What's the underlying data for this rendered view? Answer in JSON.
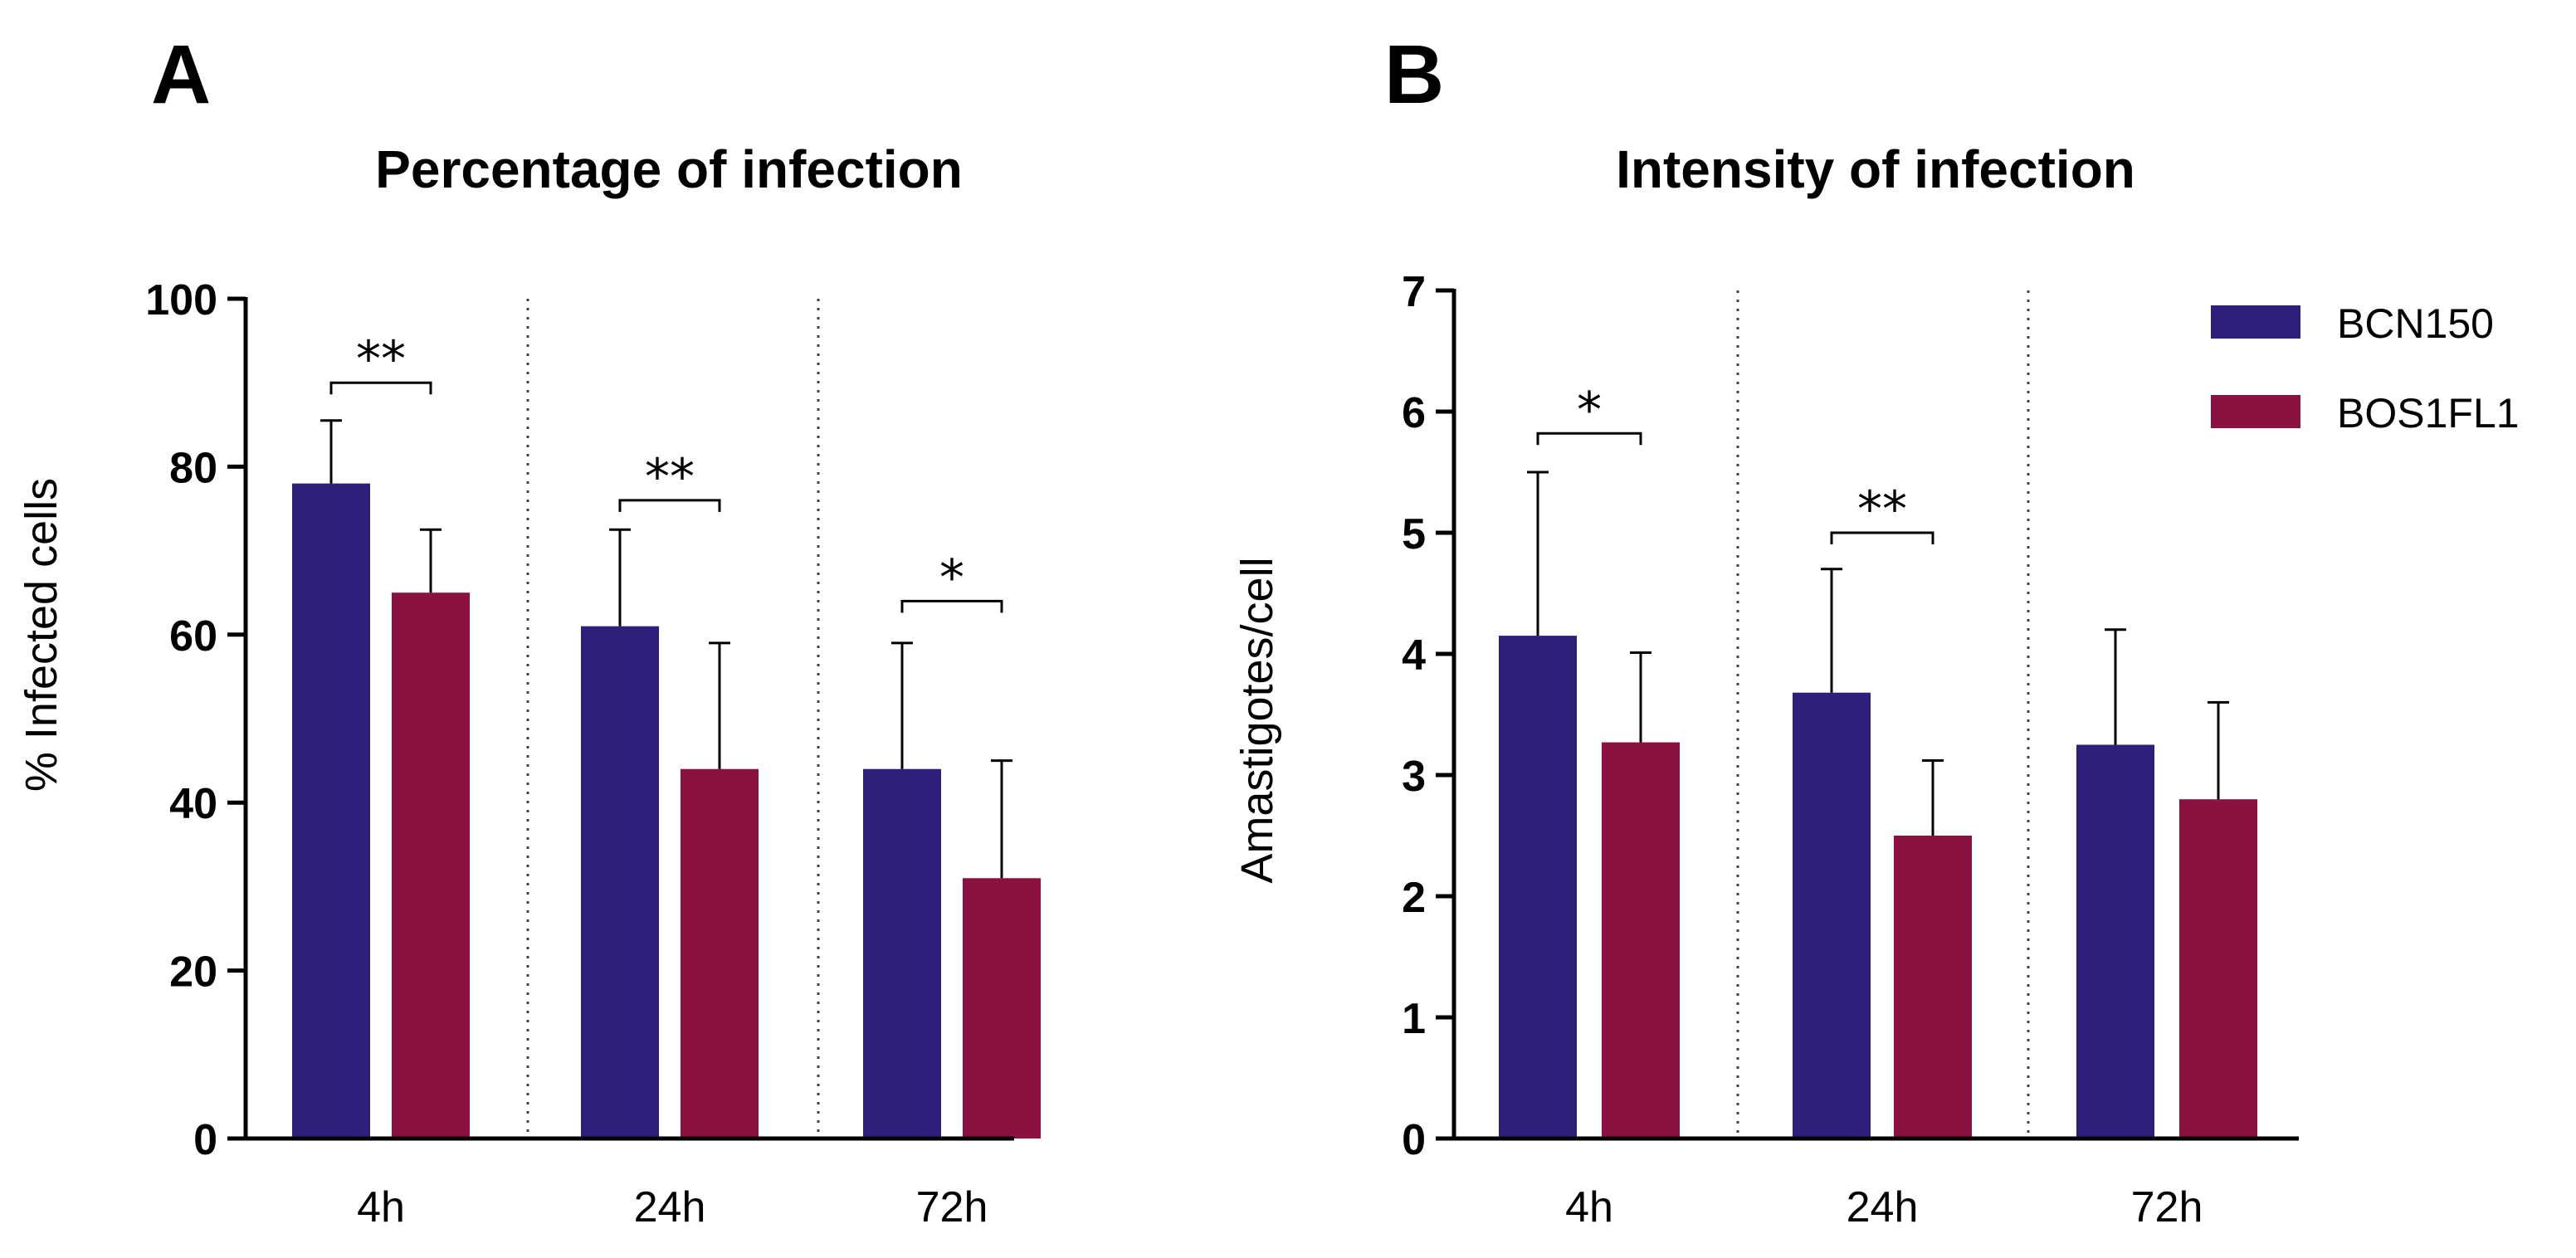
{
  "colors": {
    "BCN150": "#2e1f7a",
    "BOS1FL1": "#8b1140"
  },
  "legend": {
    "position": "top-right",
    "items": [
      {
        "label": "BCN150",
        "color": "#2e1f7a"
      },
      {
        "label": "BOS1FL1",
        "color": "#8b1140"
      }
    ]
  },
  "chart_data": [
    {
      "panel": "A",
      "type": "bar",
      "title": "Percentage of infection",
      "xlabel": "",
      "ylabel": "% Infected cells",
      "ylim": [
        0,
        100
      ],
      "yticks": [
        0,
        20,
        40,
        60,
        80,
        100
      ],
      "categories": [
        "4h",
        "24h",
        "72h"
      ],
      "series": [
        {
          "name": "BCN150",
          "values": [
            78,
            61,
            44
          ],
          "errors": [
            7.5,
            11.5,
            15
          ]
        },
        {
          "name": "BOS1FL1",
          "values": [
            65,
            44,
            31
          ],
          "errors": [
            7.5,
            15,
            14
          ]
        }
      ],
      "significance": [
        {
          "category": "4h",
          "text": "**",
          "level": 90
        },
        {
          "category": "24h",
          "text": "**",
          "level": 76
        },
        {
          "category": "72h",
          "text": "*",
          "level": 64
        }
      ]
    },
    {
      "panel": "B",
      "type": "bar",
      "title": "Intensity of infection",
      "xlabel": "",
      "ylabel": "Amastigotes/cell",
      "ylim": [
        0,
        7
      ],
      "yticks": [
        0,
        1,
        2,
        3,
        4,
        5,
        6,
        7
      ],
      "categories": [
        "4h",
        "24h",
        "72h"
      ],
      "series": [
        {
          "name": "BCN150",
          "values": [
            4.15,
            3.68,
            3.25
          ],
          "errors": [
            1.35,
            1.02,
            0.95
          ]
        },
        {
          "name": "BOS1FL1",
          "values": [
            3.27,
            2.5,
            2.8
          ],
          "errors": [
            0.74,
            0.62,
            0.8
          ]
        }
      ],
      "significance": [
        {
          "category": "4h",
          "text": "*",
          "level": 5.82
        },
        {
          "category": "24h",
          "text": "**",
          "level": 5.0
        }
      ]
    }
  ]
}
